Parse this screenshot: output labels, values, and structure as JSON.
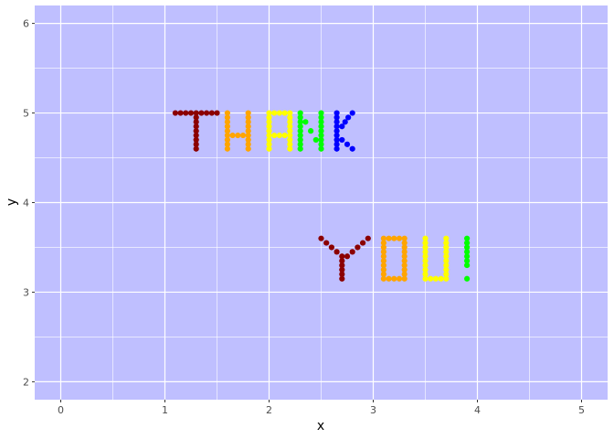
{
  "chart_data": {
    "type": "scatter",
    "title": "",
    "xlabel": "x",
    "ylabel": "y",
    "xlim": [
      -0.25,
      5.25
    ],
    "ylim": [
      1.8,
      6.2
    ],
    "x_ticks": [
      0,
      1,
      2,
      3,
      4,
      5
    ],
    "y_ticks": [
      2,
      3,
      4,
      5,
      6
    ],
    "x_tick_labels": [
      "0",
      "1",
      "2",
      "3",
      "4",
      "5"
    ],
    "y_tick_labels": [
      "2",
      "3",
      "4",
      "5",
      "6"
    ],
    "grid": true,
    "panel_color": "#bfbfff",
    "gridline_color": "#ffffff",
    "series": [
      {
        "color": "#8b0000",
        "points": [
          [
            1.1,
            5.0
          ],
          [
            1.15,
            5.0
          ],
          [
            1.2,
            5.0
          ],
          [
            1.25,
            5.0
          ],
          [
            1.3,
            5.0
          ],
          [
            1.35,
            5.0
          ],
          [
            1.4,
            5.0
          ],
          [
            1.45,
            5.0
          ],
          [
            1.5,
            5.0
          ],
          [
            1.3,
            4.95
          ],
          [
            1.3,
            4.9
          ],
          [
            1.3,
            4.85
          ],
          [
            1.3,
            4.8
          ],
          [
            1.3,
            4.75
          ],
          [
            1.3,
            4.7
          ],
          [
            1.3,
            4.65
          ],
          [
            1.3,
            4.6
          ]
        ]
      },
      {
        "color": "#ffa500",
        "points": [
          [
            1.6,
            5.0
          ],
          [
            1.6,
            4.95
          ],
          [
            1.6,
            4.9
          ],
          [
            1.6,
            4.85
          ],
          [
            1.6,
            4.8
          ],
          [
            1.6,
            4.75
          ],
          [
            1.6,
            4.7
          ],
          [
            1.6,
            4.65
          ],
          [
            1.6,
            4.6
          ],
          [
            1.8,
            5.0
          ],
          [
            1.8,
            4.95
          ],
          [
            1.8,
            4.9
          ],
          [
            1.8,
            4.85
          ],
          [
            1.8,
            4.8
          ],
          [
            1.8,
            4.75
          ],
          [
            1.8,
            4.7
          ],
          [
            1.8,
            4.65
          ],
          [
            1.8,
            4.6
          ],
          [
            1.65,
            4.75
          ],
          [
            1.7,
            4.75
          ],
          [
            1.75,
            4.75
          ]
        ]
      },
      {
        "color": "#ffff00",
        "points": [
          [
            2.0,
            4.6
          ],
          [
            2.0,
            4.65
          ],
          [
            2.0,
            4.7
          ],
          [
            2.0,
            4.75
          ],
          [
            2.0,
            4.8
          ],
          [
            2.0,
            4.85
          ],
          [
            2.0,
            4.9
          ],
          [
            2.0,
            4.95
          ],
          [
            2.0,
            5.0
          ],
          [
            2.2,
            4.6
          ],
          [
            2.2,
            4.65
          ],
          [
            2.2,
            4.7
          ],
          [
            2.2,
            4.75
          ],
          [
            2.2,
            4.8
          ],
          [
            2.2,
            4.85
          ],
          [
            2.2,
            4.9
          ],
          [
            2.2,
            4.95
          ],
          [
            2.2,
            5.0
          ],
          [
            2.05,
            5.0
          ],
          [
            2.1,
            5.0
          ],
          [
            2.15,
            5.0
          ],
          [
            2.05,
            4.75
          ],
          [
            2.1,
            4.75
          ],
          [
            2.15,
            4.75
          ]
        ]
      },
      {
        "color": "#00ff00",
        "points": [
          [
            2.3,
            4.6
          ],
          [
            2.3,
            4.65
          ],
          [
            2.3,
            4.7
          ],
          [
            2.3,
            4.75
          ],
          [
            2.3,
            4.8
          ],
          [
            2.3,
            4.85
          ],
          [
            2.3,
            4.9
          ],
          [
            2.3,
            4.95
          ],
          [
            2.3,
            5.0
          ],
          [
            2.5,
            4.6
          ],
          [
            2.5,
            4.65
          ],
          [
            2.5,
            4.7
          ],
          [
            2.5,
            4.75
          ],
          [
            2.5,
            4.8
          ],
          [
            2.5,
            4.85
          ],
          [
            2.5,
            4.9
          ],
          [
            2.5,
            4.95
          ],
          [
            2.5,
            5.0
          ],
          [
            2.35,
            4.9
          ],
          [
            2.4,
            4.8
          ],
          [
            2.45,
            4.7
          ]
        ]
      },
      {
        "color": "#0000ff",
        "points": [
          [
            2.65,
            4.6
          ],
          [
            2.65,
            4.65
          ],
          [
            2.65,
            4.7
          ],
          [
            2.65,
            4.75
          ],
          [
            2.65,
            4.8
          ],
          [
            2.65,
            4.85
          ],
          [
            2.65,
            4.9
          ],
          [
            2.65,
            4.95
          ],
          [
            2.65,
            5.0
          ],
          [
            2.7,
            4.85
          ],
          [
            2.73,
            4.9
          ],
          [
            2.76,
            4.95
          ],
          [
            2.8,
            5.0
          ],
          [
            2.7,
            4.7
          ],
          [
            2.75,
            4.65
          ],
          [
            2.8,
            4.6
          ]
        ]
      },
      {
        "color": "#8b0000",
        "points": [
          [
            2.5,
            3.6
          ],
          [
            2.55,
            3.55
          ],
          [
            2.6,
            3.5
          ],
          [
            2.65,
            3.45
          ],
          [
            2.7,
            3.4
          ],
          [
            2.75,
            3.4
          ],
          [
            2.8,
            3.45
          ],
          [
            2.85,
            3.5
          ],
          [
            2.9,
            3.55
          ],
          [
            2.95,
            3.6
          ],
          [
            2.7,
            3.35
          ],
          [
            2.7,
            3.3
          ],
          [
            2.7,
            3.25
          ],
          [
            2.7,
            3.2
          ],
          [
            2.7,
            3.15
          ]
        ]
      },
      {
        "color": "#ffa500",
        "points": [
          [
            3.1,
            3.15
          ],
          [
            3.1,
            3.2
          ],
          [
            3.1,
            3.25
          ],
          [
            3.1,
            3.3
          ],
          [
            3.1,
            3.35
          ],
          [
            3.1,
            3.4
          ],
          [
            3.1,
            3.45
          ],
          [
            3.1,
            3.5
          ],
          [
            3.1,
            3.55
          ],
          [
            3.1,
            3.6
          ],
          [
            3.3,
            3.15
          ],
          [
            3.3,
            3.2
          ],
          [
            3.3,
            3.25
          ],
          [
            3.3,
            3.3
          ],
          [
            3.3,
            3.35
          ],
          [
            3.3,
            3.4
          ],
          [
            3.3,
            3.45
          ],
          [
            3.3,
            3.5
          ],
          [
            3.3,
            3.55
          ],
          [
            3.3,
            3.6
          ],
          [
            3.15,
            3.6
          ],
          [
            3.2,
            3.6
          ],
          [
            3.25,
            3.6
          ],
          [
            3.15,
            3.15
          ],
          [
            3.2,
            3.15
          ],
          [
            3.25,
            3.15
          ]
        ]
      },
      {
        "color": "#ffff00",
        "points": [
          [
            3.5,
            3.15
          ],
          [
            3.5,
            3.2
          ],
          [
            3.5,
            3.25
          ],
          [
            3.5,
            3.3
          ],
          [
            3.5,
            3.35
          ],
          [
            3.5,
            3.4
          ],
          [
            3.5,
            3.45
          ],
          [
            3.5,
            3.5
          ],
          [
            3.5,
            3.55
          ],
          [
            3.5,
            3.6
          ],
          [
            3.7,
            3.15
          ],
          [
            3.7,
            3.2
          ],
          [
            3.7,
            3.25
          ],
          [
            3.7,
            3.3
          ],
          [
            3.7,
            3.35
          ],
          [
            3.7,
            3.4
          ],
          [
            3.7,
            3.45
          ],
          [
            3.7,
            3.5
          ],
          [
            3.7,
            3.55
          ],
          [
            3.7,
            3.6
          ],
          [
            3.55,
            3.15
          ],
          [
            3.6,
            3.15
          ],
          [
            3.65,
            3.15
          ]
        ]
      },
      {
        "color": "#00ff00",
        "points": [
          [
            3.9,
            3.15
          ],
          [
            3.9,
            3.3
          ],
          [
            3.9,
            3.35
          ],
          [
            3.9,
            3.4
          ],
          [
            3.9,
            3.45
          ],
          [
            3.9,
            3.5
          ],
          [
            3.9,
            3.55
          ],
          [
            3.9,
            3.6
          ]
        ]
      }
    ]
  }
}
